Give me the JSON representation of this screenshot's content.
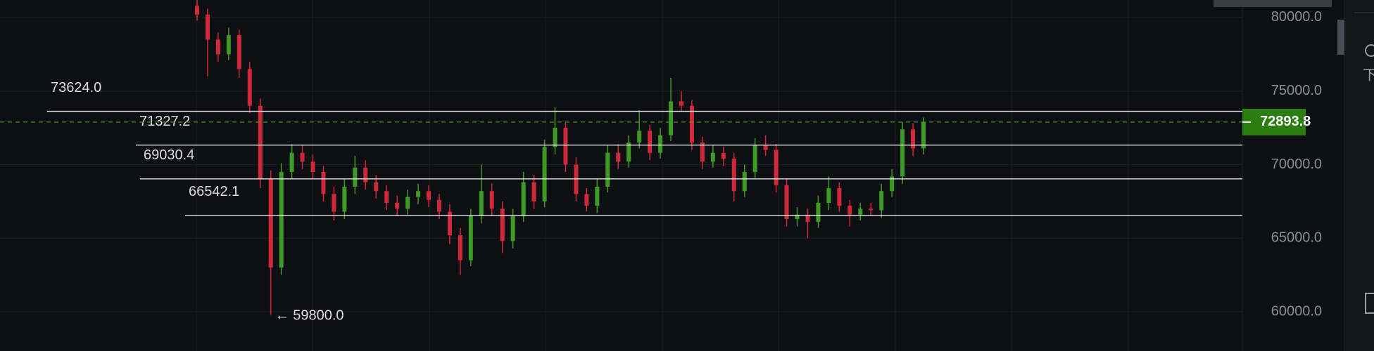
{
  "chart_data": {
    "type": "candlestick",
    "ylim": [
      57330,
      81190
    ],
    "yticks": [
      {
        "value": 60000,
        "label": "60000.0"
      },
      {
        "value": 65000,
        "label": "65000.0"
      },
      {
        "value": 70000,
        "label": "70000.0"
      },
      {
        "value": 75000,
        "label": "75000.0"
      },
      {
        "value": 80000,
        "label": "80000.0"
      }
    ],
    "up_color": "#3d9a25",
    "down_color": "#d0283b",
    "open": [
      80800,
      80200,
      78500,
      77500,
      78800,
      76500,
      74000,
      69000,
      63000,
      69500,
      70800,
      70200,
      69500,
      68000,
      66800,
      68500,
      69800,
      68800,
      68200,
      67400,
      67000,
      67800,
      68200,
      67600,
      66800,
      65200,
      63500,
      66500,
      68200,
      67000,
      64800,
      66500,
      68800,
      67500,
      71200,
      72500,
      70000,
      68000,
      67200,
      68500,
      70800,
      70200,
      71500,
      72300,
      70800,
      72000,
      74300,
      74000,
      71500,
      70200,
      70800,
      70400,
      68200,
      69500,
      71300,
      71000,
      68600,
      66300,
      66600,
      66100,
      67400,
      68400,
      67200,
      66600,
      67000,
      66900,
      68200,
      69200,
      72400,
      71100
    ],
    "high": [
      81200,
      80600,
      79000,
      79300,
      79200,
      77000,
      74500,
      69600,
      70100,
      71400,
      71300,
      70700,
      69900,
      68500,
      69000,
      70600,
      70300,
      69300,
      68600,
      67900,
      68300,
      68700,
      68600,
      68000,
      67300,
      65700,
      67000,
      70000,
      68700,
      67500,
      67000,
      69500,
      69300,
      71700,
      73900,
      72900,
      70500,
      68400,
      69000,
      71300,
      71400,
      72000,
      73700,
      72700,
      72500,
      75900,
      75000,
      74400,
      71900,
      71300,
      71200,
      70800,
      70000,
      71800,
      72000,
      71400,
      69000,
      67100,
      67000,
      67900,
      69200,
      68800,
      67600,
      67400,
      67400,
      68700,
      69700,
      72900,
      72800,
      73200
    ],
    "low": [
      79800,
      76000,
      77000,
      77100,
      75900,
      73500,
      68400,
      59800,
      62500,
      69000,
      69700,
      69000,
      67500,
      66200,
      66300,
      68000,
      68300,
      67700,
      66900,
      66500,
      66600,
      67300,
      67100,
      66300,
      64600,
      62500,
      63100,
      66000,
      66500,
      64000,
      64300,
      66100,
      67000,
      67100,
      70700,
      69500,
      67500,
      66800,
      66700,
      68100,
      69700,
      69800,
      71100,
      70300,
      70400,
      71600,
      73600,
      71000,
      69700,
      69800,
      69900,
      67500,
      67800,
      69100,
      70600,
      68100,
      65800,
      65800,
      65000,
      65700,
      66900,
      66800,
      65800,
      66200,
      66500,
      66400,
      67800,
      68700,
      70600,
      70700
    ],
    "close": [
      80200,
      78500,
      77500,
      78800,
      76500,
      74000,
      69000,
      63000,
      69500,
      70800,
      70200,
      69500,
      68000,
      66800,
      68500,
      69800,
      68800,
      68200,
      67400,
      67000,
      67800,
      68200,
      67600,
      66800,
      65200,
      63500,
      66500,
      68200,
      67000,
      64800,
      66500,
      68800,
      67500,
      71200,
      72500,
      70000,
      68000,
      67200,
      68500,
      70800,
      70200,
      71500,
      72300,
      70800,
      72000,
      74300,
      74000,
      71500,
      70200,
      70800,
      70400,
      68200,
      69500,
      71300,
      71000,
      68600,
      66300,
      66600,
      66100,
      67400,
      68400,
      67200,
      66600,
      67000,
      66900,
      68200,
      69200,
      72400,
      71100,
      72893.8
    ],
    "levels": [
      {
        "value": 73624.0,
        "label": "73624.0"
      },
      {
        "value": 71327.2,
        "label": "71327.2"
      },
      {
        "value": 69030.4,
        "label": "69030.4"
      },
      {
        "value": 66542.1,
        "label": "66542.1"
      }
    ],
    "low_label": "← 59800.0",
    "side_text": "下"
  }
}
